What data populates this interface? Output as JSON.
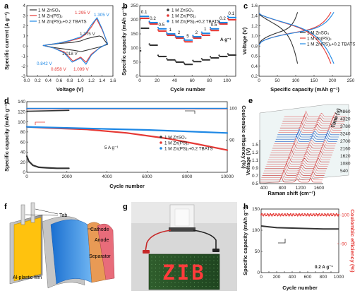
{
  "colors": {
    "zn": "#333333",
    "pc": "#e53935",
    "tb": "#1e88e5"
  },
  "legend": {
    "items": [
      "1 M ZnSO₄",
      "1 M Zn(PS)₂",
      "1 M Zn(PS)₂+0.2 TBATS"
    ]
  },
  "panel_labels": [
    "a",
    "b",
    "c",
    "d",
    "e",
    "f",
    "g",
    "h"
  ],
  "panels": {
    "f": {
      "tab": "Tab",
      "cathode": "Cathode",
      "anode": "Anode",
      "separator": "Separator",
      "film": "Al-plastic film"
    },
    "g": {
      "display": "ZIB"
    }
  },
  "chart_data": [
    {
      "panel": "a",
      "type": "line",
      "xlabel": "Voltage (V)",
      "ylabel": "Specific current (A g⁻¹)",
      "xlim": [
        0.0,
        1.6
      ],
      "ylim": [
        -3,
        4
      ],
      "xticks": [
        "0.0",
        "0.2",
        "0.4",
        "0.6",
        "0.8",
        "1.0",
        "1.2",
        "1.4",
        "1.6"
      ],
      "yticks": [
        "-3",
        "-2",
        "-1",
        "0",
        "1",
        "2",
        "3",
        "4"
      ],
      "annotations": [
        "1.295 V",
        "1.305 V",
        "1.375 V",
        "1.018 V",
        "0.842 V",
        "0.858 V",
        "1.099 V"
      ],
      "series": [
        {
          "name": "1 M ZnSO₄",
          "x": [
            0.3,
            0.6,
            0.85,
            1.0,
            1.1,
            1.25,
            1.35,
            1.4,
            1.5,
            1.35,
            1.2,
            1.05,
            1.0,
            0.9,
            0.7,
            0.5,
            0.3
          ],
          "y": [
            0.05,
            0.25,
            0.35,
            0.5,
            0.7,
            0.9,
            1.0,
            0.9,
            0.15,
            -0.1,
            -0.3,
            -0.5,
            -0.55,
            -0.45,
            -0.3,
            -0.15,
            0.05
          ]
        },
        {
          "name": "1 M Zn(PS)₂",
          "x": [
            0.3,
            0.6,
            0.8,
            1.0,
            1.1,
            1.2,
            1.295,
            1.4,
            1.5,
            1.35,
            1.2,
            1.099,
            1.0,
            0.858,
            0.7,
            0.5,
            0.3
          ],
          "y": [
            0.05,
            0.3,
            0.5,
            0.8,
            1.2,
            1.9,
            2.7,
            1.6,
            0.25,
            -0.2,
            -0.8,
            -1.6,
            -1.1,
            -1.5,
            -0.6,
            -0.2,
            0.05
          ]
        },
        {
          "name": "1 M Zn(PS)₂+0.2 TBATS",
          "x": [
            0.3,
            0.6,
            0.8,
            1.0,
            1.1,
            1.2,
            1.305,
            1.4,
            1.5,
            1.35,
            1.2,
            1.099,
            1.0,
            0.842,
            0.7,
            0.5,
            0.3
          ],
          "y": [
            0.05,
            0.3,
            0.55,
            0.9,
            1.3,
            2.1,
            2.8,
            1.7,
            0.25,
            -0.2,
            -0.9,
            -1.8,
            -1.2,
            -1.6,
            -0.7,
            -0.2,
            0.05
          ]
        }
      ]
    },
    {
      "panel": "b",
      "type": "scatter",
      "xlabel": "Cycle number",
      "ylabel": "Specific capacity (mAh g⁻¹)",
      "xlim": [
        0,
        110
      ],
      "ylim": [
        0,
        250
      ],
      "xticks": [
        "0",
        "20",
        "40",
        "60",
        "80",
        "100"
      ],
      "yticks": [
        "0",
        "50",
        "100",
        "150",
        "200",
        "250"
      ],
      "rate_labels": [
        {
          "text": "0.1",
          "x": 5
        },
        {
          "text": "0.2",
          "x": 15
        },
        {
          "text": "0.5",
          "x": 25
        },
        {
          "text": "1",
          "x": 35
        },
        {
          "text": "2",
          "x": 45
        },
        {
          "text": "5",
          "x": 55
        },
        {
          "text": "2",
          "x": 65
        },
        {
          "text": "1",
          "x": 75
        },
        {
          "text": "0.5",
          "x": 85
        },
        {
          "text": "0.2",
          "x": 95
        },
        {
          "text": "0.1",
          "x": 105
        }
      ],
      "unit_label": "A g⁻¹",
      "series": [
        {
          "name": "1 M ZnSO₄",
          "levels": [
            170,
            110,
            70,
            58,
            50,
            42,
            52,
            58,
            65,
            70,
            75
          ]
        },
        {
          "name": "1 M Zn(PS)₂",
          "levels": [
            205,
            185,
            160,
            145,
            135,
            122,
            135,
            145,
            162,
            185,
            200
          ]
        },
        {
          "name": "1 M Zn(PS)₂+0.2 TBATS",
          "levels": [
            212,
            190,
            168,
            150,
            140,
            128,
            140,
            152,
            168,
            190,
            208
          ]
        }
      ]
    },
    {
      "panel": "c",
      "type": "line",
      "xlabel": "Specific capacity (mAh g⁻¹)",
      "ylabel": "Voltage (V)",
      "xlim": [
        0,
        250
      ],
      "ylim": [
        0.2,
        1.6
      ],
      "xticks": [
        "0",
        "50",
        "100",
        "150",
        "200",
        "250"
      ],
      "yticks": [
        "0.2",
        "0.4",
        "0.6",
        "0.8",
        "1.0",
        "1.2",
        "1.4",
        "1.6"
      ],
      "series": [
        {
          "name": "1 M ZnSO₄",
          "max_cap": 105
        },
        {
          "name": "1 M Zn(PS)₂",
          "max_cap": 196
        },
        {
          "name": "1 M Zn(PS)₂+0.2 TBATS",
          "max_cap": 204
        }
      ]
    },
    {
      "panel": "d",
      "type": "line",
      "xlabel": "Cycle number",
      "ylabel": "Specific capacity (mAh g⁻¹)",
      "ylabel_right": "Coulombic efficiency (%)",
      "xlim": [
        0,
        10000
      ],
      "ylim": [
        0,
        140
      ],
      "ylim_right": [
        80,
        102
      ],
      "xticks": [
        "0",
        "2000",
        "4000",
        "6000",
        "8000",
        "10000"
      ],
      "yticks": [
        "0",
        "20",
        "40",
        "60",
        "80",
        "100",
        "120",
        "140"
      ],
      "yticks_right": [
        "90",
        "100"
      ],
      "annotation": "5 A g⁻¹",
      "series": [
        {
          "name": "1 M ZnSO₄",
          "x": [
            0,
            100,
            300,
            600,
            1000,
            1500,
            2100
          ],
          "y": [
            32,
            22,
            14,
            10,
            9,
            8,
            8
          ]
        },
        {
          "name": "1 M Zn(PS)₂",
          "x": [
            0,
            1000,
            3000,
            5000,
            7000,
            8500,
            10000
          ],
          "y": [
            90,
            88,
            85,
            78,
            67,
            56,
            44
          ]
        },
        {
          "name": "1 M Zn(PS)₂+0.2 TBATS",
          "x": [
            0,
            2000,
            4000,
            6000,
            8000,
            10000
          ],
          "y": [
            90,
            88,
            86,
            84,
            81,
            78
          ]
        },
        {
          "name": "CE 1 M ZnSO₄",
          "x": [
            0,
            2100
          ],
          "y": [
            99.0,
            99.3
          ]
        },
        {
          "name": "CE 1 M Zn(PS)₂",
          "x": [
            0,
            10000
          ],
          "y": [
            99.8,
            99.8
          ]
        },
        {
          "name": "CE 1 M Zn(PS)₂+0.2 TBATS",
          "x": [
            0,
            10000
          ],
          "y": [
            99.9,
            99.9
          ]
        }
      ]
    },
    {
      "panel": "e",
      "type": "line",
      "xlabel": "Raman shift (cm⁻¹)",
      "ylabel": "Voltage (V)",
      "zlabel": "Time (s)",
      "xticks": [
        "400",
        "800",
        "1200",
        "1600"
      ],
      "yticks": [
        "0.5",
        "0.7",
        "0.9",
        "1.1",
        "1.3",
        "1.5"
      ],
      "zticks": [
        "540",
        "1080",
        "1620",
        "2160",
        "2700",
        "3240",
        "3780",
        "4320",
        "4860"
      ]
    },
    {
      "panel": "h",
      "type": "line",
      "xlabel": "Cycle number",
      "ylabel": "Specific capacity (mAh g⁻¹)",
      "ylabel_right": "Coulombic efficiency (%)",
      "xlim": [
        0,
        1000
      ],
      "ylim": [
        0,
        150
      ],
      "xticks": [
        "0",
        "100",
        "200",
        "300",
        "400",
        "500",
        "600",
        "700",
        "800",
        "900",
        "1000"
      ],
      "yticks": [
        "0",
        "50",
        "100",
        "150"
      ],
      "yticks_right": [
        "90",
        "100"
      ],
      "annotation": "0.2 A g⁻¹",
      "series": [
        {
          "name": "capacity",
          "x": [
            0,
            100,
            200,
            400,
            600,
            800,
            1000
          ],
          "y": [
            110,
            108,
            106,
            105,
            104,
            103,
            103
          ]
        },
        {
          "name": "coulombic efficiency",
          "x": [
            0,
            1000
          ],
          "y": [
            100,
            100
          ]
        }
      ]
    }
  ]
}
